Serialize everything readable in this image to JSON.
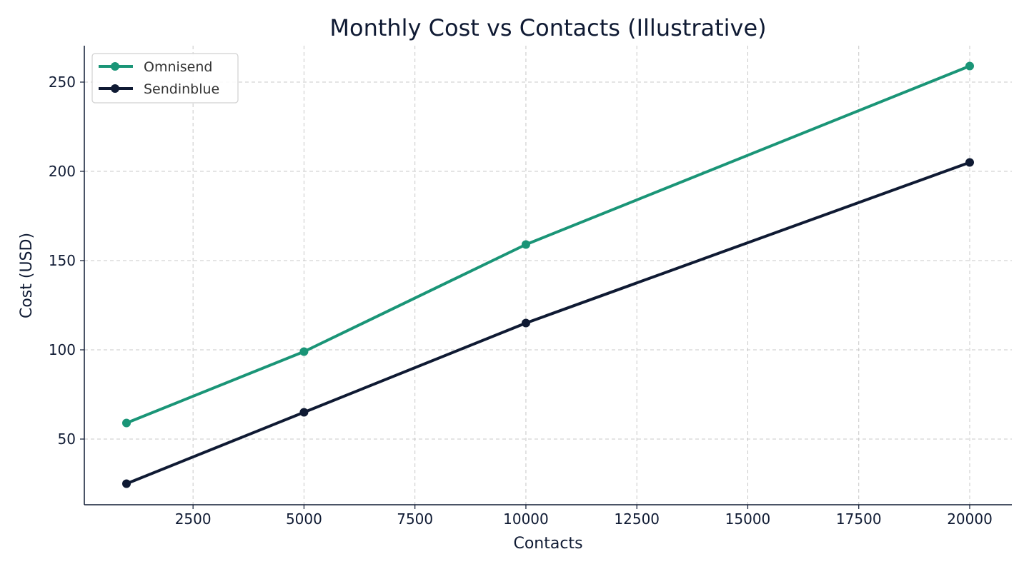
{
  "chart_data": {
    "type": "line",
    "title": "Monthly Cost vs Contacts (Illustrative)",
    "xlabel": "Contacts",
    "ylabel": "Cost (USD)",
    "x": [
      1000,
      5000,
      10000,
      20000
    ],
    "series": [
      {
        "name": "Omnisend",
        "color": "#1a9577",
        "values": [
          59,
          99,
          159,
          259
        ]
      },
      {
        "name": "Sendinblue",
        "color": "#0f1a33",
        "values": [
          25,
          65,
          115,
          205
        ]
      }
    ],
    "xticks": [
      2500,
      5000,
      7500,
      10000,
      12500,
      15000,
      17500,
      20000
    ],
    "yticks": [
      50,
      100,
      150,
      200,
      250
    ],
    "xlim": [
      50,
      20950
    ],
    "ylim": [
      13,
      271
    ],
    "grid": true,
    "legend_position": "upper left"
  }
}
